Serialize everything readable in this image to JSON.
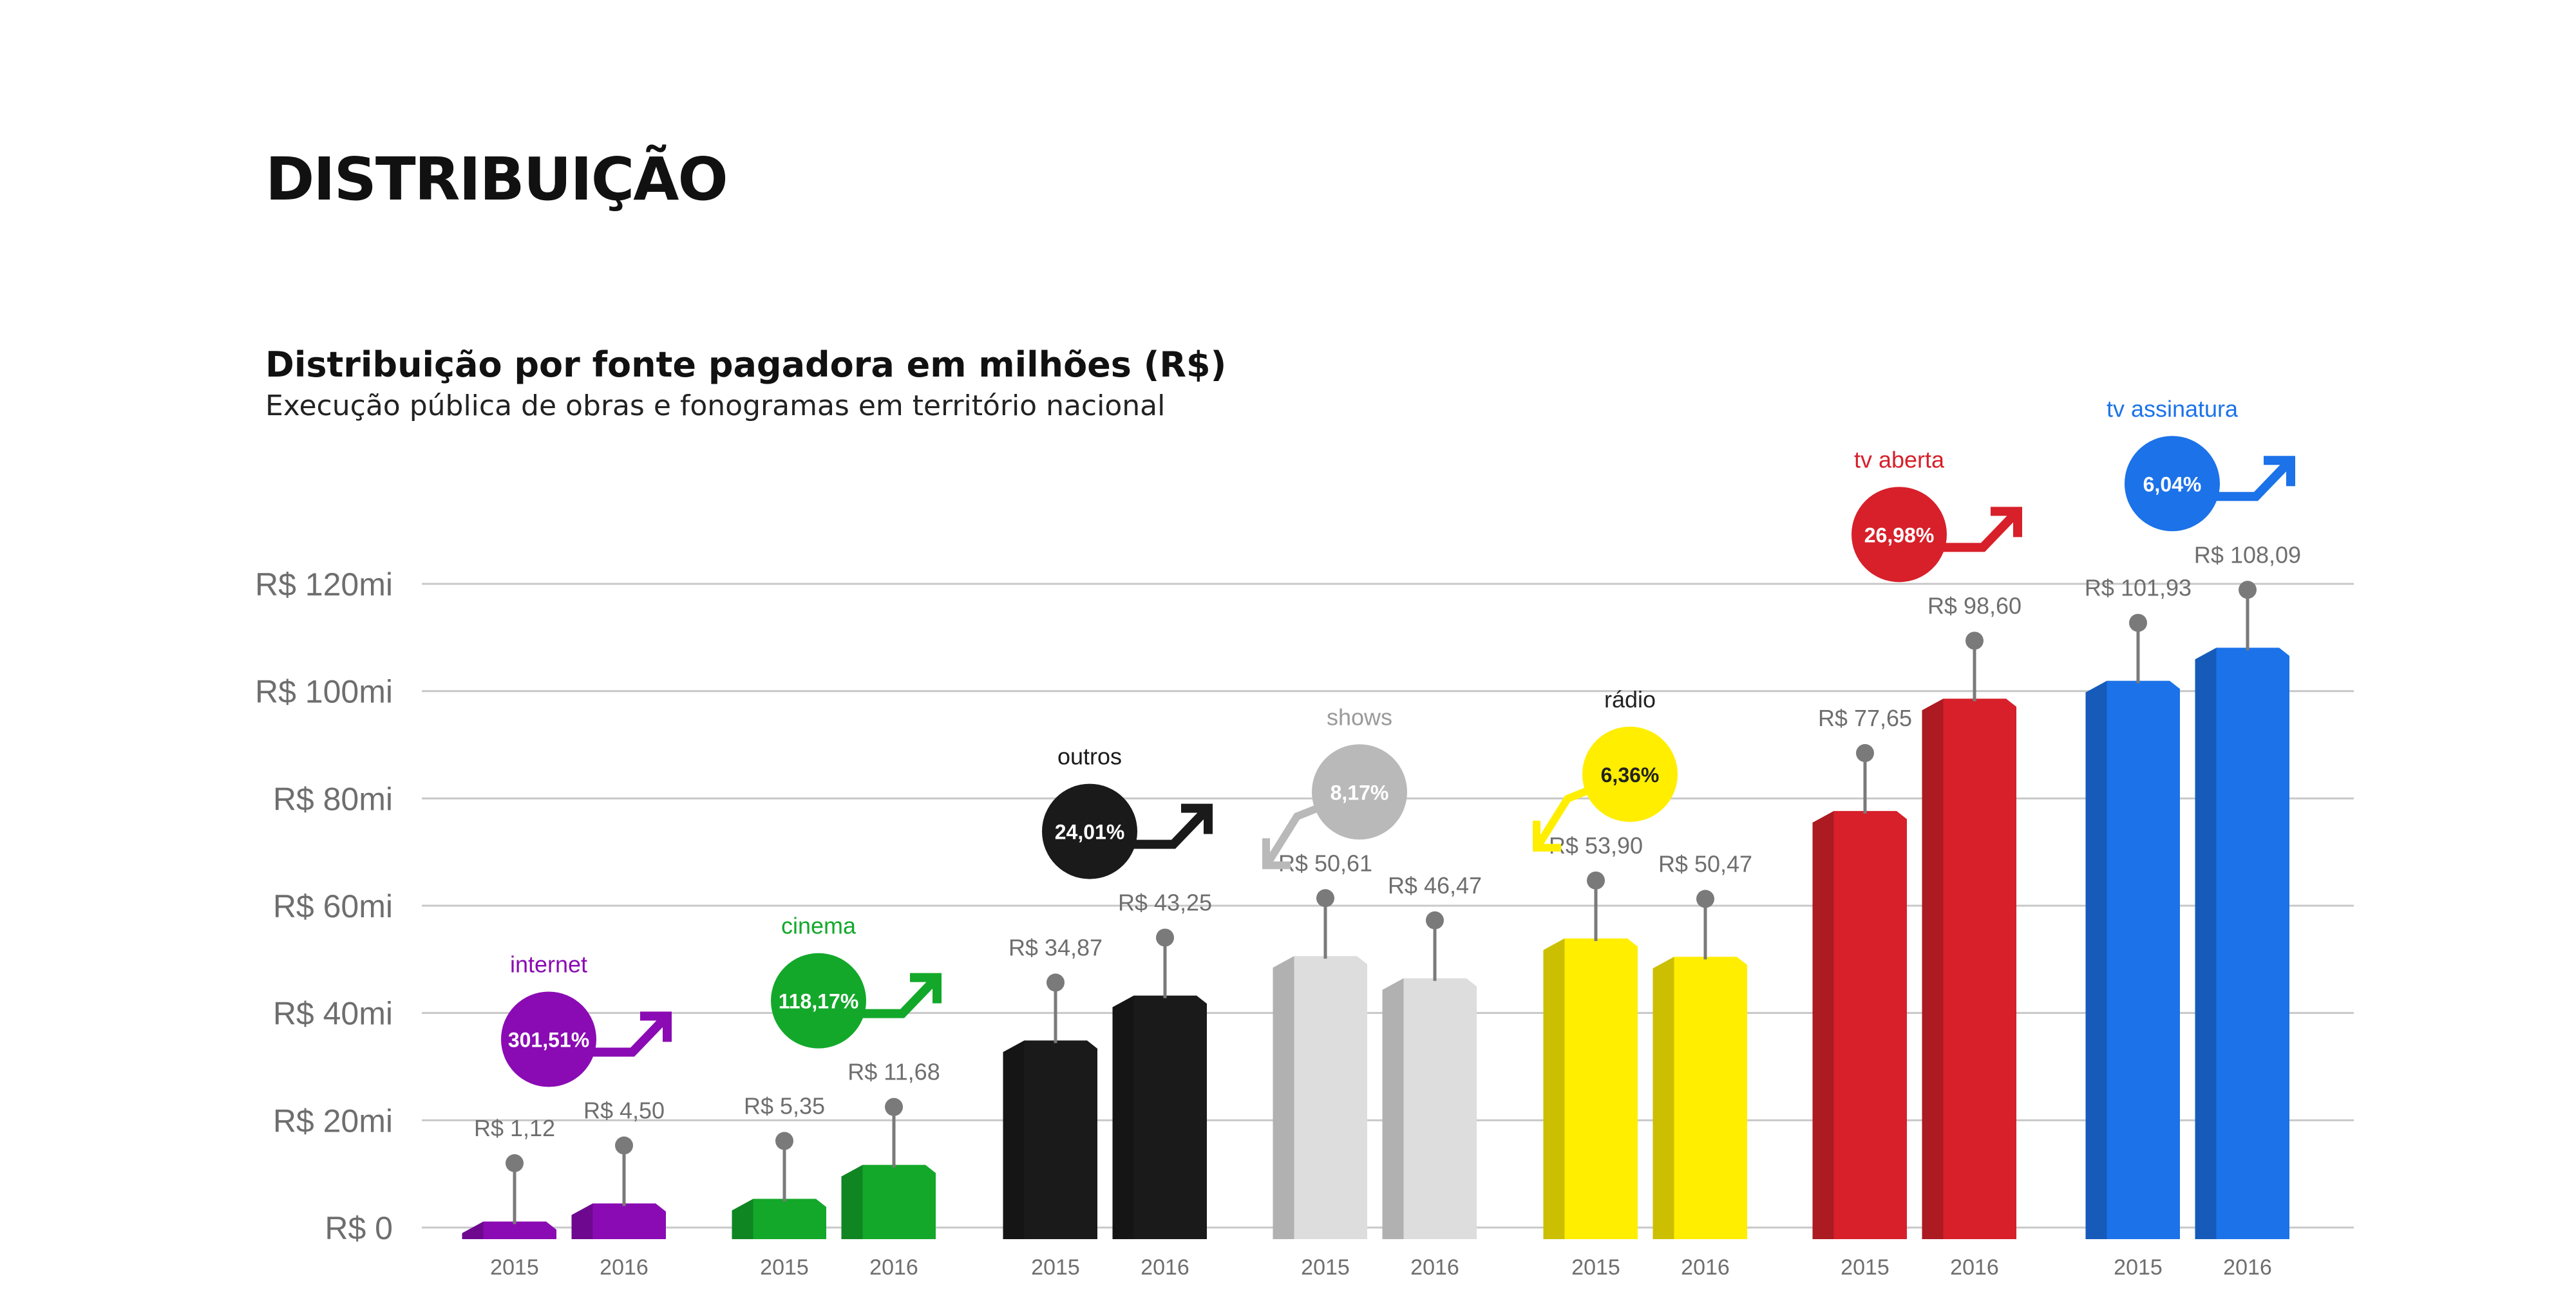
{
  "page": {
    "title": "DISTRIBUIÇÃO"
  },
  "chart_data": {
    "type": "bar",
    "title": "Distribuição por fonte pagadora em milhões (R$)",
    "subtitle": "Execução pública de obras e fonogramas em território nacional",
    "ylim": [
      0,
      120
    ],
    "y_ticks": [
      {
        "value": 0,
        "label": "R$ 0"
      },
      {
        "value": 20,
        "label": "R$ 20mi"
      },
      {
        "value": 40,
        "label": "R$ 40mi"
      },
      {
        "value": 60,
        "label": "R$ 60mi"
      },
      {
        "value": 80,
        "label": "R$ 80mi"
      },
      {
        "value": 100,
        "label": "R$ 100mi"
      },
      {
        "value": 120,
        "label": "R$ 120mi"
      }
    ],
    "grid": true,
    "years": [
      "2015",
      "2016"
    ],
    "groups": [
      {
        "name": "internet",
        "color": "#8a0bb3",
        "growth": "301,51%",
        "direction": "up",
        "values": [
          1.12,
          4.5
        ],
        "value_labels": [
          "R$ 1,12",
          "R$ 4,50"
        ]
      },
      {
        "name": "cinema",
        "color": "#13a82a",
        "growth": "118,17%",
        "direction": "up",
        "values": [
          5.35,
          11.68
        ],
        "value_labels": [
          "R$ 5,35",
          "R$ 11,68"
        ]
      },
      {
        "name": "outros",
        "color": "#1a1a1a",
        "growth": "24,01%",
        "direction": "up",
        "values": [
          34.87,
          43.25
        ],
        "value_labels": [
          "R$ 34,87",
          "R$ 43,25"
        ]
      },
      {
        "name": "shows",
        "color": "#dddddd",
        "name_color": "#9a9a9a",
        "circle_color": "#b9b9b9",
        "growth": "8,17%",
        "direction": "down",
        "values": [
          50.61,
          46.47
        ],
        "value_labels": [
          "R$ 50,61",
          "R$ 46,47"
        ]
      },
      {
        "name": "rádio",
        "color": "#ffee00",
        "name_color": "#222222",
        "growth_text_color": "#222222",
        "growth": "6,36%",
        "direction": "down",
        "values": [
          53.9,
          50.47
        ],
        "value_labels": [
          "R$ 53,90",
          "R$ 50,47"
        ]
      },
      {
        "name": "tv aberta",
        "color": "#d7202a",
        "growth": "26,98%",
        "direction": "up",
        "values": [
          77.65,
          98.6
        ],
        "value_labels": [
          "R$ 77,65",
          "R$ 98,60"
        ]
      },
      {
        "name": "tv assinatura",
        "color": "#1c72e8",
        "growth": "6,04%",
        "direction": "up",
        "values": [
          101.93,
          108.09
        ],
        "value_labels": [
          "R$ 101,93",
          "R$ 108,09"
        ]
      }
    ]
  }
}
